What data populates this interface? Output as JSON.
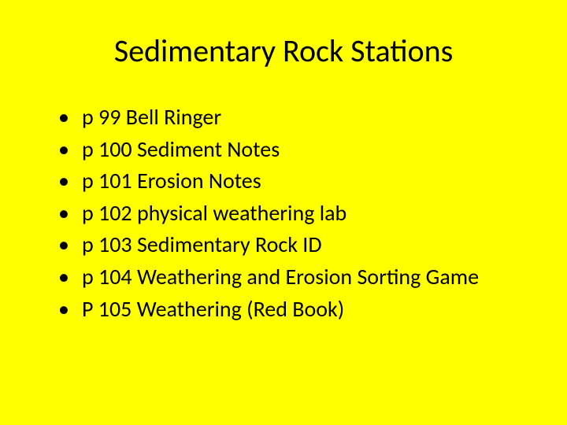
{
  "background_color": "#ffff00",
  "text_color": "#000000",
  "title": "Sedimentary Rock Stations",
  "title_fontsize": 40,
  "item_fontsize": 28,
  "bullet_char": "•",
  "items": [
    "p 99 Bell Ringer",
    "p 100 Sediment Notes",
    "p 101 Erosion Notes",
    "p 102 physical weathering lab",
    "p 103 Sedimentary Rock ID",
    "p 104 Weathering and Erosion Sorting Game",
    "P 105 Weathering (Red Book)"
  ]
}
